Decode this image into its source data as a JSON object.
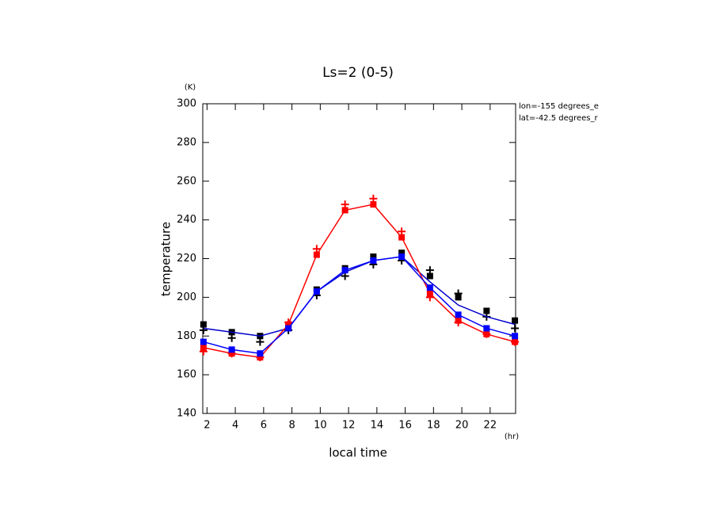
{
  "chart_data": {
    "type": "line",
    "title": "Ls=2 (0-5)",
    "y_unit": "(K)",
    "x_unit": "(hr)",
    "ylabel": "temperature",
    "xlabel": "local time",
    "annotations": [
      "lon=-155 degrees_e",
      "lat=-42.5 degrees_r"
    ],
    "x": [
      1.75,
      3.75,
      5.75,
      7.75,
      9.75,
      11.75,
      13.75,
      15.75,
      17.75,
      19.75,
      21.75,
      23.75
    ],
    "xlim": [
      1.7,
      23.8
    ],
    "xticks": [
      2,
      4,
      6,
      8,
      10,
      12,
      14,
      16,
      18,
      20,
      22
    ],
    "ylim": [
      140,
      300
    ],
    "yticks": [
      140,
      160,
      180,
      200,
      220,
      240,
      260,
      280,
      300
    ],
    "series": [
      {
        "color": "#000000",
        "marker": "plus",
        "line": false,
        "values": [
          183,
          179,
          177,
          183,
          201,
          211,
          217,
          219,
          214,
          202,
          190,
          184
        ]
      },
      {
        "color": "#ff0000",
        "marker": "plus",
        "line": false,
        "values": [
          172,
          171,
          169,
          187,
          225,
          248,
          251,
          234,
          200,
          187,
          181,
          177
        ]
      },
      {
        "color": "#000000",
        "marker": "square",
        "line": false,
        "values": [
          186,
          182,
          180,
          185,
          204,
          215,
          221,
          223,
          211,
          200,
          193,
          188
        ]
      },
      {
        "color": "#0000cc",
        "marker": "none",
        "line": true,
        "values": [
          184,
          182,
          180,
          184,
          203,
          213,
          219,
          221,
          208,
          196,
          190,
          186
        ]
      },
      {
        "color": "#ff0000",
        "marker": "square",
        "line": true,
        "values": [
          174,
          171,
          169,
          186,
          222,
          245,
          248,
          231,
          202,
          188,
          181,
          177
        ]
      },
      {
        "color": "#0000ff",
        "marker": "square",
        "line": true,
        "values": [
          177,
          173,
          171,
          184,
          203,
          214,
          219,
          221,
          205,
          191,
          184,
          180
        ]
      }
    ]
  }
}
